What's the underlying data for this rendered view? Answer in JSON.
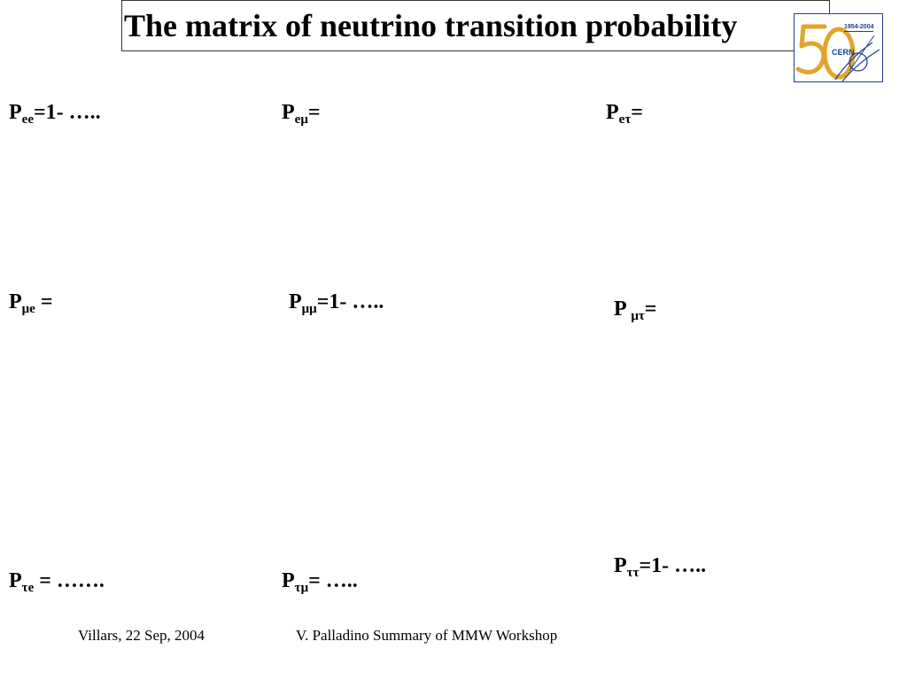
{
  "title": "The matrix of neutrino transition probability",
  "logo": {
    "years": "1954-2004",
    "number": "50",
    "name": "CERN"
  },
  "matrix": {
    "ee": {
      "symbol": "P",
      "sub": "ee",
      "text": "=1- ….."
    },
    "emu": {
      "symbol": "P",
      "sub": "eμ",
      "text": "="
    },
    "etau": {
      "symbol": "P",
      "sub": "eτ",
      "text": "="
    },
    "mue": {
      "symbol": "P",
      "sub": "μe",
      "text": " ="
    },
    "mumu": {
      "symbol": "P",
      "sub": "μμ",
      "text": "=1- ….."
    },
    "mutau": {
      "symbol": "P ",
      "sub": "μτ",
      "text": "="
    },
    "taue": {
      "symbol": "P",
      "sub": "τe",
      "text": " = ……."
    },
    "taumu": {
      "symbol": "P",
      "sub": "τμ",
      "text": "= ….."
    },
    "tautau": {
      "symbol": "P",
      "sub": "ττ",
      "text": "=1- ….."
    }
  },
  "footer": {
    "left": "Villars, 22 Sep, 2004",
    "right": "V. Palladino   Summary of MMW Workshop"
  },
  "colors": {
    "logo_gold": "#e2a42a",
    "logo_blue": "#1c3f8f"
  }
}
